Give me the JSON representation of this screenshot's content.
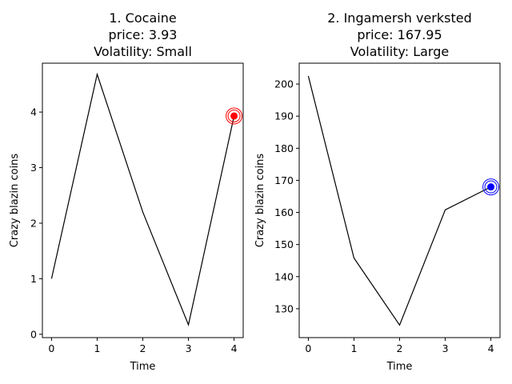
{
  "chart_data": [
    {
      "type": "line",
      "title_lines": [
        "1. Cocaine",
        "price: 3.93",
        "Volatility: Small"
      ],
      "xlabel": "Time",
      "ylabel": "Crazy blazin coins",
      "x": [
        0,
        1,
        2,
        3,
        4
      ],
      "values": [
        1.0,
        4.68,
        2.2,
        0.17,
        3.93
      ],
      "xlim": [
        -0.2,
        4.2
      ],
      "ylim": [
        -0.06,
        4.88
      ],
      "xticks": [
        0,
        1,
        2,
        3,
        4
      ],
      "yticks": [
        0,
        1,
        2,
        3,
        4
      ],
      "line_color": "#000000",
      "marker": {
        "x": 4,
        "y": 3.93,
        "color": "#ff0000"
      },
      "grid": false
    },
    {
      "type": "line",
      "title_lines": [
        "2. Ingamersh verksted",
        "price: 167.95",
        "Volatility: Large"
      ],
      "xlabel": "Time",
      "ylabel": "Crazy blazin coins",
      "x": [
        0,
        1,
        2,
        3,
        4
      ],
      "values": [
        202.5,
        145.8,
        124.9,
        160.8,
        167.95
      ],
      "xlim": [
        -0.2,
        4.2
      ],
      "ylim": [
        121.0,
        206.5
      ],
      "xticks": [
        0,
        1,
        2,
        3,
        4
      ],
      "yticks": [
        130,
        140,
        150,
        160,
        170,
        180,
        190,
        200
      ],
      "line_color": "#000000",
      "marker": {
        "x": 4,
        "y": 167.95,
        "color": "#0000ff"
      },
      "grid": false
    }
  ]
}
